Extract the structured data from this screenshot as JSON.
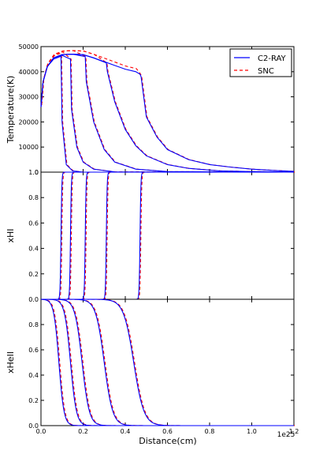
{
  "chart_data": {
    "type": "line",
    "xlabel": "Distance(cm)",
    "x_offset_text": "1e25",
    "xlim": [
      0,
      1.2
    ],
    "xticks": [
      "0.0",
      "0.2",
      "0.4",
      "0.6",
      "0.8",
      "1.0",
      "1.2"
    ],
    "legend": {
      "position": "top-right",
      "entries": [
        {
          "label": "C2-RAY",
          "color": "#0000ff",
          "style": "solid"
        },
        {
          "label": "SNC",
          "color": "#ff0000",
          "style": "dashed"
        }
      ]
    },
    "front_positions": [
      0.095,
      0.14,
      0.21,
      0.31,
      0.47
    ],
    "panels": [
      {
        "ylabel": "Temperature(K)",
        "ylim": [
          0,
          50000
        ],
        "yticks": [
          "0",
          "10000",
          "20000",
          "30000",
          "40000",
          "50000"
        ],
        "series": [
          {
            "front": 0.095,
            "points": [
              [
                0.0,
                26000
              ],
              [
                0.01,
                36000
              ],
              [
                0.03,
                42000
              ],
              [
                0.06,
                45000
              ],
              [
                0.09,
                46000
              ],
              [
                0.095,
                46000
              ],
              [
                0.1,
                20000
              ],
              [
                0.12,
                3000
              ],
              [
                0.15,
                500
              ],
              [
                0.2,
                0
              ],
              [
                1.2,
                0
              ]
            ]
          },
          {
            "front": 0.14,
            "points": [
              [
                0.0,
                26000
              ],
              [
                0.01,
                36000
              ],
              [
                0.03,
                42000
              ],
              [
                0.06,
                45500
              ],
              [
                0.1,
                46500
              ],
              [
                0.14,
                45000
              ],
              [
                0.145,
                25000
              ],
              [
                0.17,
                10000
              ],
              [
                0.2,
                4000
              ],
              [
                0.25,
                1200
              ],
              [
                0.35,
                100
              ],
              [
                1.2,
                0
              ]
            ]
          },
          {
            "front": 0.21,
            "points": [
              [
                0.0,
                26000
              ],
              [
                0.01,
                36000
              ],
              [
                0.03,
                42000
              ],
              [
                0.06,
                45500
              ],
              [
                0.1,
                46800
              ],
              [
                0.15,
                47000
              ],
              [
                0.21,
                46000
              ],
              [
                0.215,
                36000
              ],
              [
                0.25,
                20000
              ],
              [
                0.3,
                9000
              ],
              [
                0.35,
                4000
              ],
              [
                0.45,
                1200
              ],
              [
                0.6,
                200
              ],
              [
                1.2,
                0
              ]
            ]
          },
          {
            "front": 0.31,
            "points": [
              [
                0.0,
                26000
              ],
              [
                0.01,
                36000
              ],
              [
                0.03,
                42000
              ],
              [
                0.06,
                45500
              ],
              [
                0.1,
                46800
              ],
              [
                0.15,
                47000
              ],
              [
                0.2,
                46800
              ],
              [
                0.25,
                45500
              ],
              [
                0.31,
                43500
              ],
              [
                0.315,
                40000
              ],
              [
                0.35,
                28000
              ],
              [
                0.4,
                17000
              ],
              [
                0.45,
                10500
              ],
              [
                0.5,
                6500
              ],
              [
                0.6,
                3000
              ],
              [
                0.7,
                1500
              ],
              [
                0.85,
                500
              ],
              [
                1.0,
                200
              ],
              [
                1.2,
                50
              ]
            ]
          },
          {
            "front": 0.47,
            "points": [
              [
                0.0,
                26000
              ],
              [
                0.01,
                36000
              ],
              [
                0.03,
                42000
              ],
              [
                0.06,
                45500
              ],
              [
                0.1,
                46800
              ],
              [
                0.15,
                47000
              ],
              [
                0.2,
                46800
              ],
              [
                0.25,
                45500
              ],
              [
                0.3,
                44000
              ],
              [
                0.35,
                42500
              ],
              [
                0.4,
                41000
              ],
              [
                0.45,
                40000
              ],
              [
                0.47,
                39000
              ],
              [
                0.475,
                38000
              ],
              [
                0.5,
                22000
              ],
              [
                0.55,
                14000
              ],
              [
                0.6,
                9000
              ],
              [
                0.7,
                5000
              ],
              [
                0.8,
                3000
              ],
              [
                0.9,
                2000
              ],
              [
                1.0,
                1200
              ],
              [
                1.1,
                700
              ],
              [
                1.2,
                300
              ]
            ]
          }
        ]
      },
      {
        "ylabel": "xHI",
        "ylim": [
          0,
          1
        ],
        "yticks": [
          "0.0",
          "0.2",
          "0.4",
          "0.6",
          "0.8",
          "1.0"
        ],
        "fronts": [
          0.095,
          0.14,
          0.21,
          0.31,
          0.47
        ]
      },
      {
        "ylabel": "xHeII",
        "ylim": [
          0,
          1
        ],
        "yticks": [
          "0.0",
          "0.2",
          "0.4",
          "0.6",
          "0.8"
        ],
        "centers": [
          0.085,
          0.14,
          0.195,
          0.3,
          0.44
        ],
        "widths": [
          0.012,
          0.014,
          0.017,
          0.02,
          0.024
        ]
      }
    ]
  }
}
